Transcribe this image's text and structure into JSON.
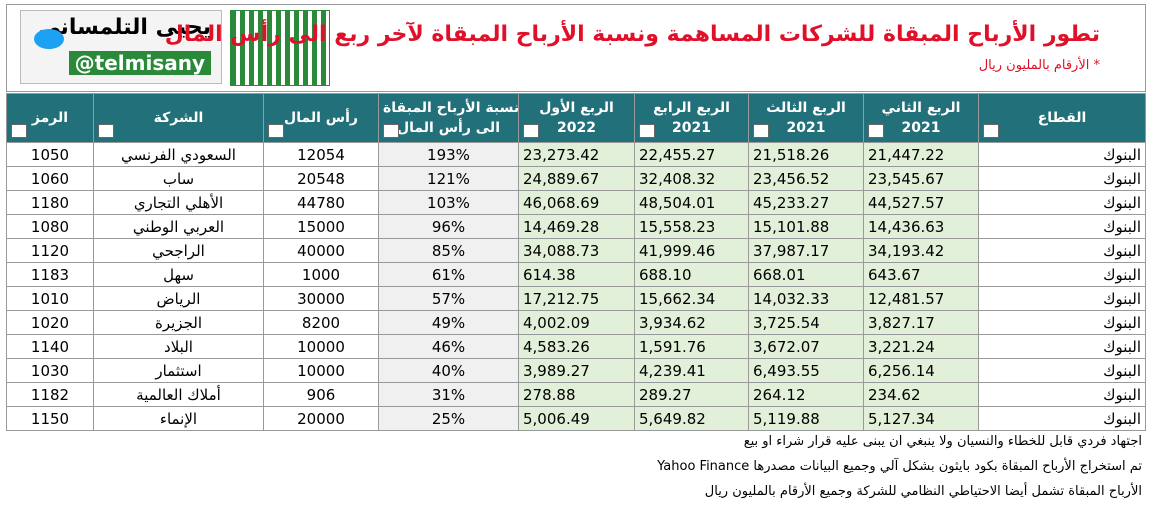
{
  "header": {
    "title": "تطور الأرباح المبقاة للشركات المساهمة ونسبة الأرباح المبقاة لآخر ربع الى رأس المال",
    "subtitle": "* الأرقام بالمليون ريال",
    "author_name": "يحيى التلمساني",
    "author_handle": "@telmisany"
  },
  "table": {
    "columns": [
      [
        "الرمز"
      ],
      [
        "الشركة"
      ],
      [
        "رأس المال"
      ],
      [
        "نسبة الأرباح المبقاة",
        "الى رأس المال"
      ],
      [
        "الربع الأول",
        "2022"
      ],
      [
        "الربع الرابع",
        "2021"
      ],
      [
        "الربع الثالث",
        "2021"
      ],
      [
        "الربع الثاني",
        "2021"
      ],
      [
        "القطاع"
      ]
    ],
    "rows": [
      [
        "1050",
        "السعودي الفرنسي",
        "12054",
        "193%",
        "23,273.42",
        "22,455.27",
        "21,518.26",
        "21,447.22",
        "البنوك"
      ],
      [
        "1060",
        "ساب",
        "20548",
        "121%",
        "24,889.67",
        "32,408.32",
        "23,456.52",
        "23,545.67",
        "البنوك"
      ],
      [
        "1180",
        "الأهلي التجاري",
        "44780",
        "103%",
        "46,068.69",
        "48,504.01",
        "45,233.27",
        "44,527.57",
        "البنوك"
      ],
      [
        "1080",
        "العربي الوطني",
        "15000",
        "96%",
        "14,469.28",
        "15,558.23",
        "15,101.88",
        "14,436.63",
        "البنوك"
      ],
      [
        "1120",
        "الراجحي",
        "40000",
        "85%",
        "34,088.73",
        "41,999.46",
        "37,987.17",
        "34,193.42",
        "البنوك"
      ],
      [
        "1183",
        "سهل",
        "1000",
        "61%",
        "614.38",
        "688.10",
        "668.01",
        "643.67",
        "البنوك"
      ],
      [
        "1010",
        "الرياض",
        "30000",
        "57%",
        "17,212.75",
        "15,662.34",
        "14,032.33",
        "12,481.57",
        "البنوك"
      ],
      [
        "1020",
        "الجزيرة",
        "8200",
        "49%",
        "4,002.09",
        "3,934.62",
        "3,725.54",
        "3,827.17",
        "البنوك"
      ],
      [
        "1140",
        "البلاد",
        "10000",
        "46%",
        "4,583.26",
        "1,591.76",
        "3,672.07",
        "3,221.24",
        "البنوك"
      ],
      [
        "1030",
        "استثمار",
        "10000",
        "40%",
        "3,989.27",
        "4,239.41",
        "6,493.55",
        "6,256.14",
        "البنوك"
      ],
      [
        "1182",
        "أملاك العالمية",
        "906",
        "31%",
        "278.88",
        "289.27",
        "264.12",
        "234.62",
        "البنوك"
      ],
      [
        "1150",
        "الإنماء",
        "20000",
        "25%",
        "5,006.49",
        "5,649.82",
        "5,119.88",
        "5,127.34",
        "البنوك"
      ]
    ]
  },
  "footer": {
    "notes": [
      "اجتهاد فردي قابل للخطاء والنسيان ولا ينبغي ان يبنى عليه قرار شراء او بيع",
      "تم استخراج الأرباح المبقاة بكود بايثون بشكل آلي وجميع البيانات مصدرها Yahoo Finance",
      "الأرباح المبقاة تشمل أيضا الاحتياطي النظامي للشركة وجميع الأرقام بالمليون ريال"
    ]
  }
}
